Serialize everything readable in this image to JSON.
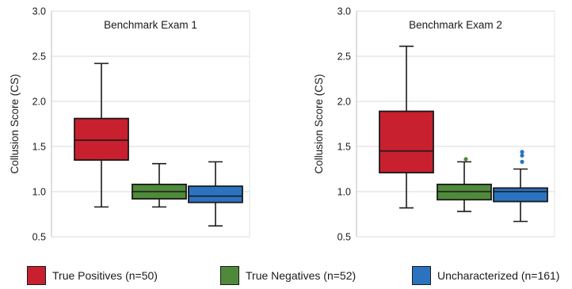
{
  "chart_data": [
    {
      "type": "boxplot",
      "title": "Benchmark Exam 1",
      "ylabel": "Collusion Score (CS)",
      "ylim": [
        0.5,
        3.0
      ],
      "yticks": [
        "0.5",
        "1.0",
        "1.5",
        "2.0",
        "2.5",
        "3.0"
      ],
      "grid": true,
      "series": [
        {
          "name": "True Positives (n=50)",
          "color": "#c8202f",
          "min": 0.83,
          "q1": 1.35,
          "median": 1.57,
          "q3": 1.81,
          "max": 2.42,
          "outliers": []
        },
        {
          "name": "True Negatives (n=52)",
          "color": "#4f8a3a",
          "min": 0.83,
          "q1": 0.92,
          "median": 1.0,
          "q3": 1.08,
          "max": 1.31,
          "outliers": []
        },
        {
          "name": "Uncharacterized (n=161)",
          "color": "#2b73c0",
          "min": 0.62,
          "q1": 0.88,
          "median": 0.95,
          "q3": 1.06,
          "max": 1.33,
          "outliers": []
        }
      ]
    },
    {
      "type": "boxplot",
      "title": "Benchmark Exam 2",
      "ylabel": "Collusion Score (CS)",
      "ylim": [
        0.5,
        3.0
      ],
      "yticks": [
        "0.5",
        "1.0",
        "1.5",
        "2.0",
        "2.5",
        "3.0"
      ],
      "grid": true,
      "series": [
        {
          "name": "True Positives (n=50)",
          "color": "#c8202f",
          "min": 0.82,
          "q1": 1.21,
          "median": 1.45,
          "q3": 1.89,
          "max": 2.61,
          "outliers": []
        },
        {
          "name": "True Negatives (n=52)",
          "color": "#4f8a3a",
          "min": 0.78,
          "q1": 0.91,
          "median": 1.0,
          "q3": 1.08,
          "max": 1.33,
          "outliers": [
            1.36
          ]
        },
        {
          "name": "Uncharacterized (n=161)",
          "color": "#2b73c0",
          "min": 0.67,
          "q1": 0.89,
          "median": 1.0,
          "q3": 1.04,
          "max": 1.25,
          "outliers": [
            1.33,
            1.4,
            1.44
          ]
        }
      ]
    }
  ],
  "legend": {
    "position": "bottom",
    "items": [
      {
        "label": "True Positives (n=50)",
        "color": "#c8202f"
      },
      {
        "label": "True Negatives (n=52)",
        "color": "#4f8a3a"
      },
      {
        "label": "Uncharacterized (n=161)",
        "color": "#2b73c0"
      }
    ]
  }
}
